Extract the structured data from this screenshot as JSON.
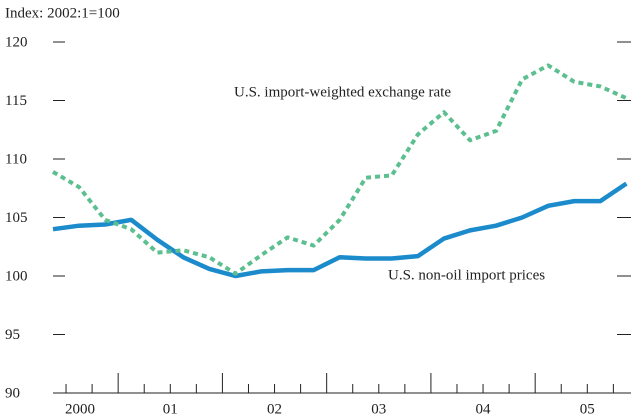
{
  "chart_data": {
    "type": "line",
    "subtitle": "Index: 2002:1=100",
    "x": [
      2000.375,
      2000.625,
      2000.875,
      2001.125,
      2001.375,
      2001.625,
      2001.875,
      2002.125,
      2002.375,
      2002.625,
      2002.875,
      2003.125,
      2003.375,
      2003.625,
      2003.875,
      2004.125,
      2004.375,
      2004.625,
      2004.875,
      2005.125,
      2005.375,
      2005.625,
      2005.875
    ],
    "series": [
      {
        "name": "U.S. non-oil import prices",
        "color": "#1b8bcc",
        "dashed": false,
        "values": [
          104.0,
          104.3,
          104.4,
          104.8,
          103.1,
          101.6,
          100.6,
          100.0,
          100.4,
          100.5,
          100.5,
          101.6,
          101.5,
          101.5,
          101.7,
          103.2,
          103.9,
          104.3,
          105.0,
          106.0,
          106.4,
          106.4,
          107.9
        ]
      },
      {
        "name": "U.S. import-weighted exchange rate",
        "color": "#5cbf8f",
        "dashed": true,
        "values": [
          108.9,
          107.6,
          104.8,
          104.0,
          102.0,
          102.2,
          101.6,
          100.2,
          101.8,
          103.3,
          102.6,
          104.8,
          108.4,
          108.6,
          112.1,
          114.0,
          111.6,
          112.4,
          116.8,
          118.0,
          116.6,
          116.2,
          115.2
        ]
      }
    ],
    "xlim": [
      2000.375,
      2005.9
    ],
    "ylim": [
      90,
      120
    ],
    "yticks": [
      90,
      95,
      100,
      105,
      110,
      115,
      120
    ],
    "xticks": [
      {
        "value": 2000.5,
        "label": "2000"
      },
      {
        "value": 2001.5,
        "label": "01"
      },
      {
        "value": 2002.5,
        "label": "02"
      },
      {
        "value": 2003.5,
        "label": "03"
      },
      {
        "value": 2004.5,
        "label": "04"
      },
      {
        "value": 2005.5,
        "label": "05"
      }
    ],
    "xmajorticks": [
      2001,
      2002,
      2003,
      2004,
      2005
    ],
    "xminorticks": [
      2000.5,
      2000.75,
      2001.25,
      2001.5,
      2001.75,
      2002.25,
      2002.5,
      2002.75,
      2003.25,
      2003.5,
      2003.75,
      2004.25,
      2004.5,
      2004.75,
      2005.25,
      2005.5,
      2005.75
    ],
    "legend": "inline"
  }
}
